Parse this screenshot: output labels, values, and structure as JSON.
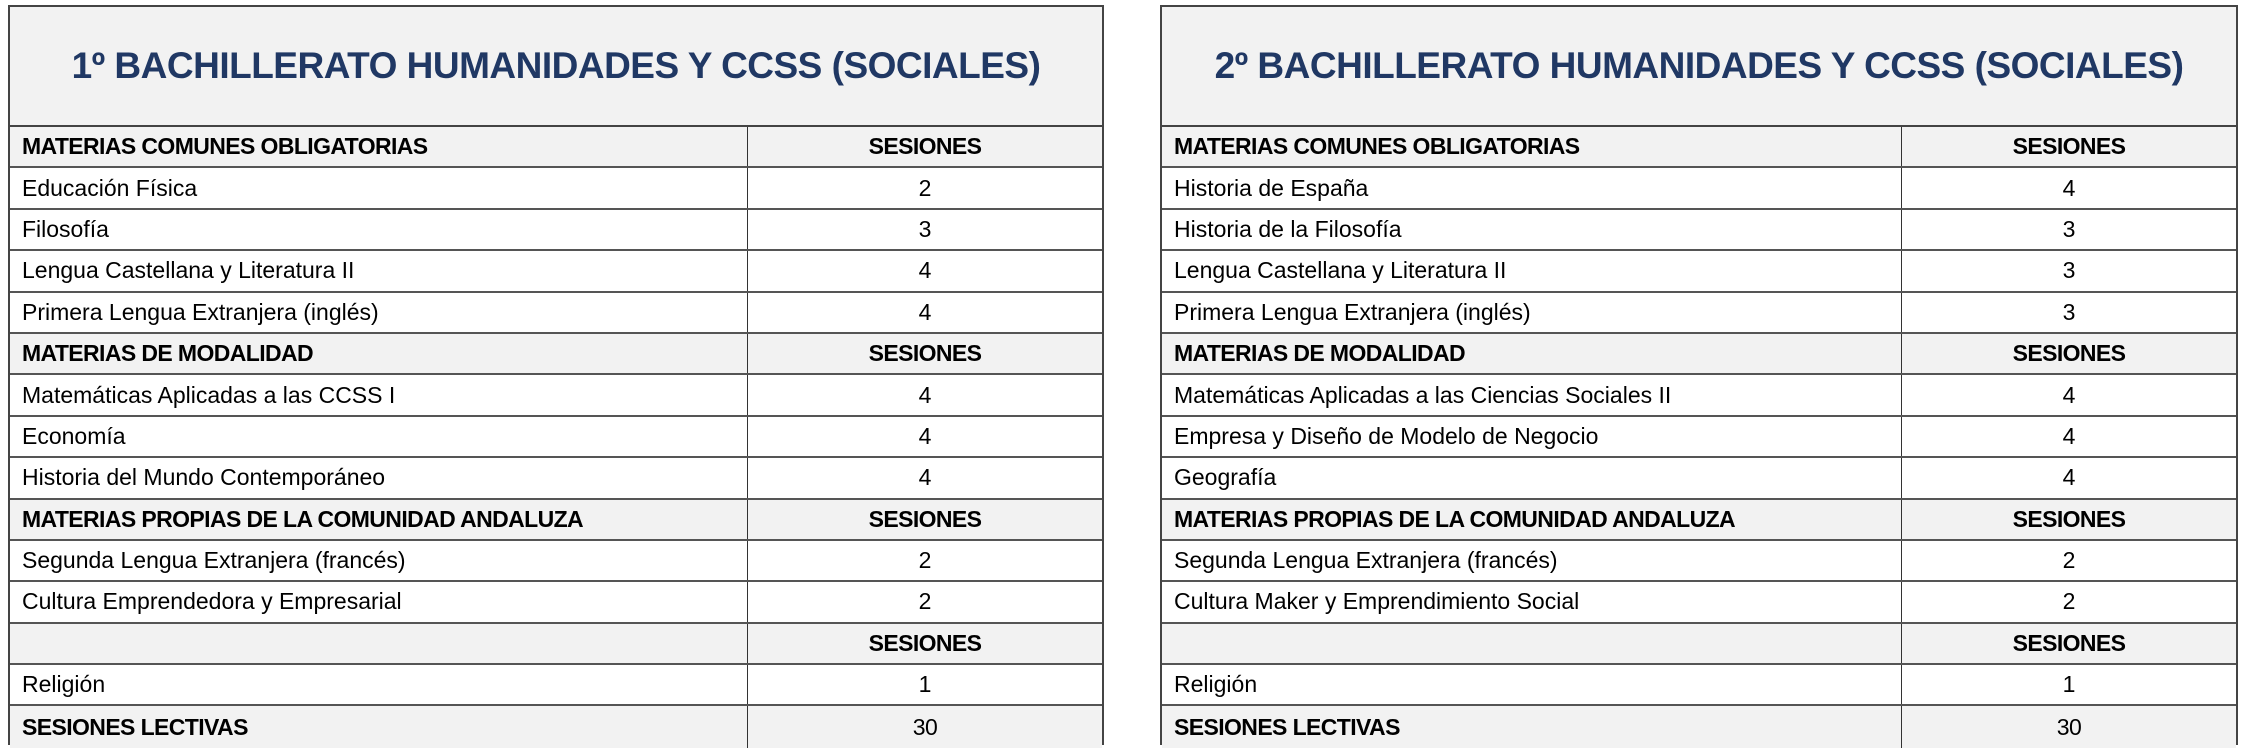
{
  "tables": [
    {
      "title": "1º BACHILLERATO HUMANIDADES Y CCSS (SOCIALES)",
      "rows": [
        {
          "type": "header",
          "subject": "MATERIAS COMUNES OBLIGATORIAS",
          "sessions": "SESIONES"
        },
        {
          "type": "item",
          "subject": "Educación Física",
          "sessions": "2"
        },
        {
          "type": "item",
          "subject": "Filosofía",
          "sessions": "3"
        },
        {
          "type": "item",
          "subject": "Lengua Castellana y Literatura II",
          "sessions": "4"
        },
        {
          "type": "item",
          "subject": "Primera Lengua Extranjera (inglés)",
          "sessions": "4"
        },
        {
          "type": "header",
          "subject": "MATERIAS DE MODALIDAD",
          "sessions": "SESIONES"
        },
        {
          "type": "item",
          "subject": "Matemáticas Aplicadas a las CCSS I",
          "sessions": "4"
        },
        {
          "type": "item",
          "subject": "Economía",
          "sessions": "4"
        },
        {
          "type": "item",
          "subject": "Historia del Mundo Contemporáneo",
          "sessions": "4"
        },
        {
          "type": "header",
          "subject": "MATERIAS PROPIAS DE LA COMUNIDAD ANDALUZA",
          "sessions": "SESIONES"
        },
        {
          "type": "item",
          "subject": "Segunda Lengua Extranjera (francés)",
          "sessions": "2"
        },
        {
          "type": "item",
          "subject": "Cultura Emprendedora y Empresarial",
          "sessions": "2"
        },
        {
          "type": "header",
          "subject": "",
          "sessions": "SESIONES"
        },
        {
          "type": "item",
          "subject": "Religión",
          "sessions": "1"
        },
        {
          "type": "total",
          "subject": "SESIONES LECTIVAS",
          "sessions": "30"
        }
      ]
    },
    {
      "title": "2º BACHILLERATO HUMANIDADES Y CCSS (SOCIALES)",
      "rows": [
        {
          "type": "header",
          "subject": "MATERIAS COMUNES OBLIGATORIAS",
          "sessions": "SESIONES"
        },
        {
          "type": "item",
          "subject": "Historia de España",
          "sessions": "4"
        },
        {
          "type": "item",
          "subject": "Historia de la Filosofía",
          "sessions": "3"
        },
        {
          "type": "item",
          "subject": "Lengua Castellana y Literatura II",
          "sessions": "3"
        },
        {
          "type": "item",
          "subject": "Primera Lengua Extranjera (inglés)",
          "sessions": "3"
        },
        {
          "type": "header",
          "subject": "MATERIAS DE MODALIDAD",
          "sessions": "SESIONES"
        },
        {
          "type": "item",
          "subject": "Matemáticas Aplicadas a las Ciencias Sociales II",
          "sessions": "4"
        },
        {
          "type": "item",
          "subject": "Empresa y Diseño de Modelo de Negocio",
          "sessions": "4"
        },
        {
          "type": "item",
          "subject": "Geografía",
          "sessions": "4"
        },
        {
          "type": "header",
          "subject": "MATERIAS PROPIAS DE LA COMUNIDAD ANDALUZA",
          "sessions": "SESIONES"
        },
        {
          "type": "item",
          "subject": "Segunda Lengua Extranjera (francés)",
          "sessions": "2"
        },
        {
          "type": "item",
          "subject": "Cultura Maker y Emprendimiento Social",
          "sessions": "2"
        },
        {
          "type": "header",
          "subject": "",
          "sessions": "SESIONES"
        },
        {
          "type": "item",
          "subject": "Religión",
          "sessions": "1"
        },
        {
          "type": "total",
          "subject": "SESIONES LECTIVAS",
          "sessions": "30"
        }
      ]
    }
  ],
  "colors": {
    "title": "#203864",
    "header_bg": "#f2f2f2"
  }
}
